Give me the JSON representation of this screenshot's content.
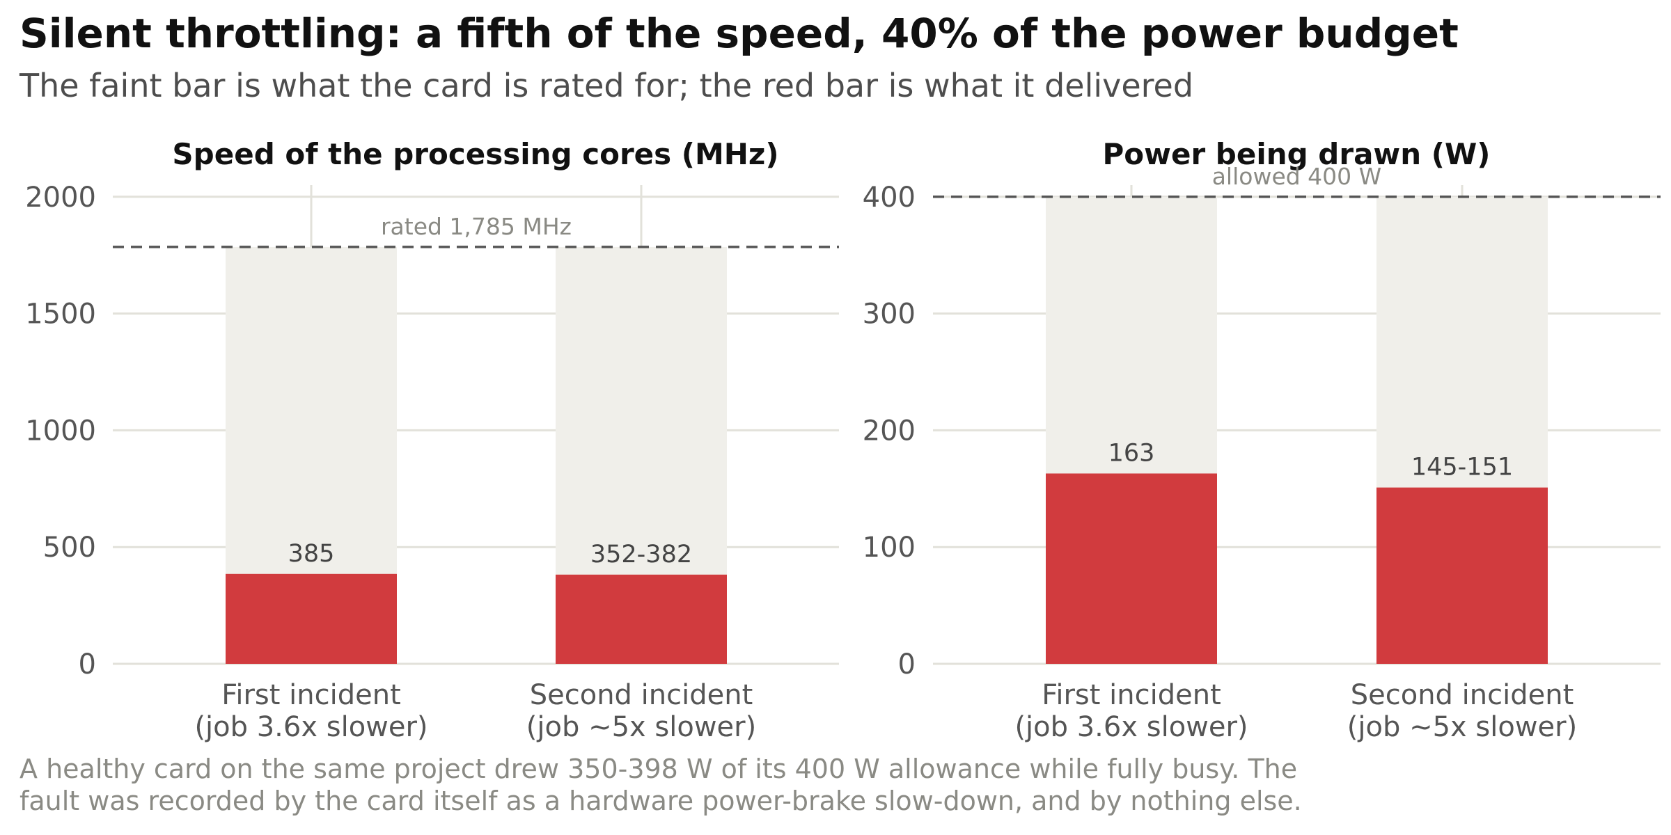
{
  "header": {
    "title": "Silent throttling: a fifth of the speed, 40% of the power budget",
    "subtitle": "The faint bar is what the card is rated for; the red bar is what it delivered"
  },
  "footnote": {
    "line1": "A healthy card on the same project drew 350-398 W of its 400 W allowance while fully busy. The",
    "line2": "fault was recorded by the card itself as a hardware power-brake slow-down, and by nothing else."
  },
  "colors": {
    "delivered": "#d13b3e",
    "rated": "#f0efea",
    "grid": "#e2e1da",
    "reference_line": "#555555"
  },
  "chart_data": [
    {
      "type": "bar",
      "title": "Speed of the processing cores (MHz)",
      "categories": [
        [
          "First incident",
          "(job 3.6x slower)"
        ],
        [
          "Second incident",
          "(job ~5x slower)"
        ]
      ],
      "series": [
        {
          "name": "rated",
          "values": [
            1785,
            1785
          ]
        },
        {
          "name": "delivered",
          "values": [
            385,
            382
          ]
        }
      ],
      "value_labels": [
        "385",
        "352-382"
      ],
      "reference": {
        "value": 1785,
        "label": "rated 1,785 MHz"
      },
      "yticks": [
        0,
        500,
        1000,
        1500,
        2000
      ],
      "ylim": [
        0,
        2050
      ],
      "grid": true
    },
    {
      "type": "bar",
      "title": "Power being drawn (W)",
      "categories": [
        [
          "First incident",
          "(job 3.6x slower)"
        ],
        [
          "Second incident",
          "(job ~5x slower)"
        ]
      ],
      "series": [
        {
          "name": "rated",
          "values": [
            400,
            400
          ]
        },
        {
          "name": "delivered",
          "values": [
            163,
            151
          ]
        }
      ],
      "value_labels": [
        "163",
        "145-151"
      ],
      "reference": {
        "value": 400,
        "label": "allowed 400 W"
      },
      "yticks": [
        0,
        100,
        200,
        300,
        400
      ],
      "ylim": [
        0,
        410
      ],
      "grid": true
    }
  ]
}
